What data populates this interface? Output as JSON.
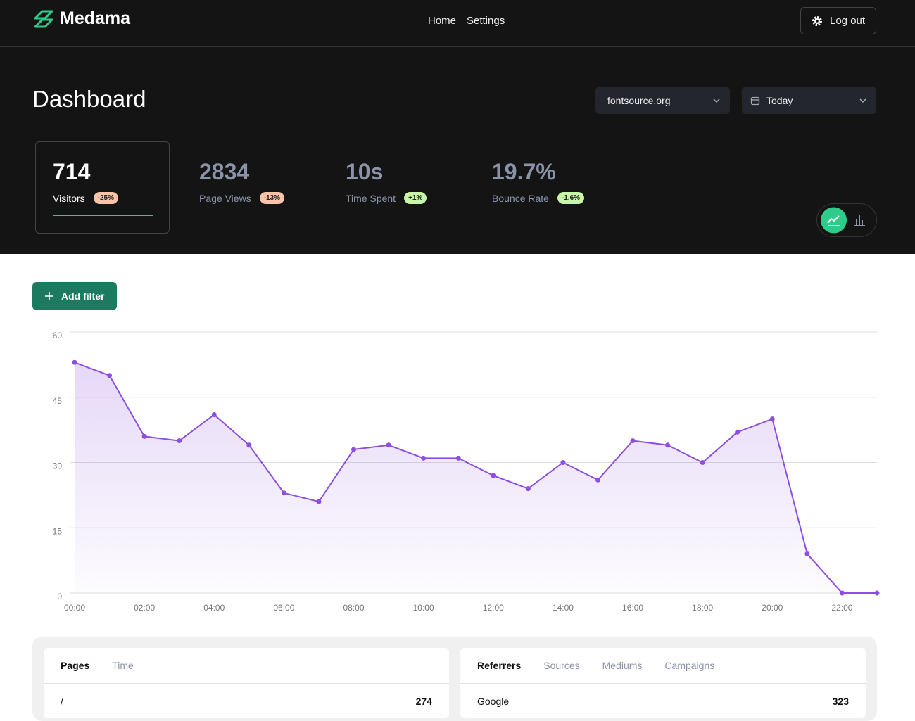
{
  "header": {
    "brand": "Medama",
    "nav": [
      "Home",
      "Settings"
    ],
    "logout": "Log out"
  },
  "dashboard": {
    "title": "Dashboard",
    "site": "fontsource.org",
    "range": "Today",
    "add_filter": "Add filter"
  },
  "stats": [
    {
      "value": "714",
      "label": "Visitors",
      "change": "-25%",
      "trend": "down"
    },
    {
      "value": "2834",
      "label": "Page Views",
      "change": "-13%",
      "trend": "down"
    },
    {
      "value": "10s",
      "label": "Time Spent",
      "change": "+1%",
      "trend": "up"
    },
    {
      "value": "19.7%",
      "label": "Bounce Rate",
      "change": "-1.6%",
      "trend": "up"
    }
  ],
  "chart_data": {
    "type": "area",
    "color": "#8d4fe0",
    "grid": true,
    "categories": [
      "00:00",
      null,
      "02:00",
      null,
      "04:00",
      null,
      "06:00",
      null,
      "08:00",
      null,
      "10:00",
      null,
      "12:00",
      null,
      "14:00",
      null,
      "16:00",
      null,
      "18:00",
      null,
      "20:00",
      null,
      "22:00",
      null
    ],
    "values": [
      53,
      50,
      36,
      35,
      41,
      34,
      23,
      21,
      33,
      34,
      31,
      31,
      27,
      24,
      30,
      26,
      35,
      34,
      30,
      37,
      40,
      9,
      0,
      0
    ],
    "ylim": [
      0,
      60
    ],
    "yticks": [
      0,
      15,
      30,
      45,
      60
    ]
  },
  "panels": [
    {
      "tabs": [
        "Pages",
        "Time"
      ],
      "rows": [
        [
          "/",
          "274"
        ]
      ]
    },
    {
      "tabs": [
        "Referrers",
        "Sources",
        "Mediums",
        "Campaigns"
      ],
      "rows": [
        [
          "Google",
          "323"
        ]
      ]
    }
  ]
}
